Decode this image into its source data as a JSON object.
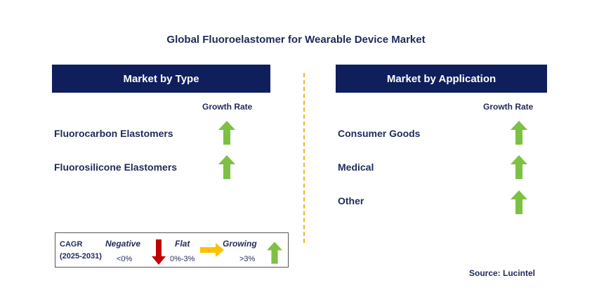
{
  "title": "Global Fluoroelastomer for Wearable Device Market",
  "left_panel": {
    "header": "Market by Type",
    "growth_rate_label": "Growth Rate",
    "items": [
      {
        "label": "Fluorocarbon Elastomers",
        "trend": "growing"
      },
      {
        "label": "Fluorosilicone Elastomers",
        "trend": "growing"
      }
    ]
  },
  "right_panel": {
    "header": "Market by Application",
    "growth_rate_label": "Growth Rate",
    "items": [
      {
        "label": "Consumer Goods",
        "trend": "growing"
      },
      {
        "label": "Medical",
        "trend": "growing"
      },
      {
        "label": "Other",
        "trend": "growing"
      }
    ]
  },
  "legend": {
    "cagr": "CAGR",
    "period": "(2025-2031)",
    "negative": {
      "label": "Negative",
      "range": "<0%",
      "color": "#c00000"
    },
    "flat": {
      "label": "Flat",
      "range": "0%-3%",
      "color": "#ffc000"
    },
    "growing": {
      "label": "Growing",
      "range": ">3%",
      "color": "#7cc142"
    }
  },
  "source": "Source: Lucintel",
  "colors": {
    "header_bg": "#0f1f5c",
    "text": "#1f2a5a",
    "divider": "#f0b429",
    "up_arrow": "#7cc142"
  }
}
